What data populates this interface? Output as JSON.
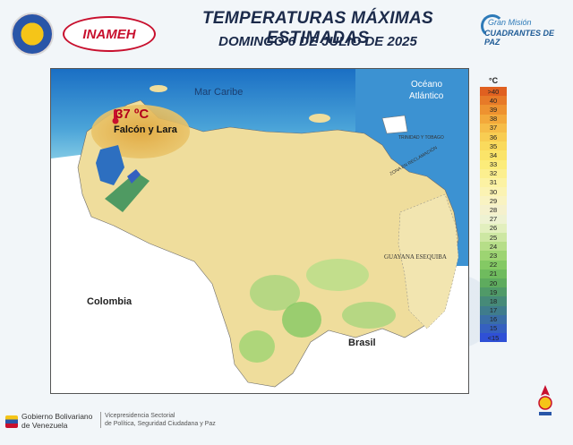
{
  "header": {
    "title": "TEMPERATURAS MÁXIMAS ESTIMADAS",
    "date": "DOMINGO 6 DE JULIO DE 2025",
    "inameh_logo": "INAMEH",
    "mision_line1": "Gran Misión",
    "mision_line2": "CUADRANTES DE PAZ"
  },
  "map": {
    "labels": {
      "mar_caribe": "Mar Caribe",
      "oceano": "Océano",
      "atlantico": "Atlántico",
      "colombia": "Colombia",
      "brasil": "Brasil",
      "guayana": "GUAYANA ESEQUIBA",
      "trinidad": "TRINIDAD Y TOBAGO",
      "zona": "ZONA EN RECLAMACIÓN",
      "highlight_temp": "37 ºC",
      "highlight_region": "Falcón y Lara"
    },
    "colors": {
      "sea_deep": "#1a6fc4",
      "sea_light": "#8fd3e8",
      "land_warm": "#f0dc96",
      "land_hot": "#e7b54d",
      "land_cool": "#a8d67d",
      "land_cold": "#4f9a62"
    }
  },
  "legend": {
    "unit": "°C",
    "items": [
      {
        "label": ">40",
        "color": "#e06020"
      },
      {
        "label": "40",
        "color": "#e77a28"
      },
      {
        "label": "39",
        "color": "#ee9230"
      },
      {
        "label": "38",
        "color": "#f3a93b"
      },
      {
        "label": "37",
        "color": "#f6bd48"
      },
      {
        "label": "36",
        "color": "#f8cd52"
      },
      {
        "label": "35",
        "color": "#fada5c"
      },
      {
        "label": "34",
        "color": "#fbe469"
      },
      {
        "label": "33",
        "color": "#fcec7a"
      },
      {
        "label": "32",
        "color": "#fcef8f"
      },
      {
        "label": "31",
        "color": "#fcf2a3"
      },
      {
        "label": "30",
        "color": "#fbf3b3"
      },
      {
        "label": "29",
        "color": "#f9f3c2"
      },
      {
        "label": "28",
        "color": "#f5f1cd"
      },
      {
        "label": "27",
        "color": "#eef2d2"
      },
      {
        "label": "26",
        "color": "#e2efbe"
      },
      {
        "label": "25",
        "color": "#cde7a3"
      },
      {
        "label": "24",
        "color": "#b6de88"
      },
      {
        "label": "23",
        "color": "#9dd472"
      },
      {
        "label": "22",
        "color": "#84c964"
      },
      {
        "label": "21",
        "color": "#6fbb5e"
      },
      {
        "label": "20",
        "color": "#5eab5e"
      },
      {
        "label": "19",
        "color": "#509a68"
      },
      {
        "label": "18",
        "color": "#468a78"
      },
      {
        "label": "17",
        "color": "#3f7c8c"
      },
      {
        "label": "16",
        "color": "#3a6ea6"
      },
      {
        "label": "15",
        "color": "#3560c0"
      },
      {
        "label": "<15",
        "color": "#2f50d6"
      }
    ]
  },
  "footer": {
    "gob_line1": "Gobierno Bolivariano",
    "gob_line2": "de Venezuela",
    "vice_line1": "Vicepresidencia Sectorial",
    "vice_line2": "de Política, Seguridad Ciudadana y Paz"
  }
}
